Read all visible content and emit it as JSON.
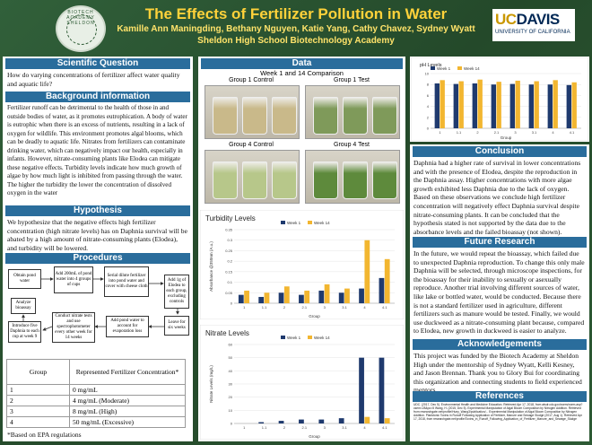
{
  "header": {
    "title": "The Effects of Fertilizer Pollution in Water",
    "authors": "Kamille Ann Maningding, Bethany Nguyen, Katie Yang, Cathy Chavez, Sydney Wyatt",
    "school": "Sheldon High School Biotechnology Academy",
    "logo_left_text": "BIOTECH ACADEMY SHELDON",
    "logo_right_main": "UCDAVIS",
    "logo_right_sub": "UNIVERSITY OF CALIFORNIA"
  },
  "scientific_question": {
    "heading": "Scientific Question",
    "body": "How do varying concentrations of fertilizer affect water quality and aquatic life?"
  },
  "background": {
    "heading": "Background information",
    "body": "Fertilizer runoff can be detrimental to the health of those in and outside bodies of water, as it promotes eutrophication. A body of water is eutrophic when there is an excess of nutrients, resulting in a lack of oxygen for wildlife. This environment promotes algal blooms, which can be deadly to aquatic life. Nitrates from fertilizers can contaminate drinking water, which can negatively impact our health, especially in infants. However, nitrate-consuming plants like Elodea can mitigate these negative effects. Turbidity levels indicate how much growth of algae by how much light is inhibited from passing through the water. The higher the turbidity the lower the concentration of dissolved oxygen in the water"
  },
  "hypothesis": {
    "heading": "Hypothesis",
    "body": "We hypothesize that the negative effects high fertilizer concentration (high nitrate levels) has on Daphnia survival will be abated by a high amount of nitrate-consuming plants (Elodea), and turbidity will be lowered."
  },
  "procedures": {
    "heading": "Procedures",
    "steps": [
      "Obtain pond water",
      "Add 200mL of pond water into 4 groups of cups",
      "Serial dilute fertilizer into pond water and cover with cheese cloth",
      "Add 1g of Elodea to each group, excluding controls",
      "Leave for six weeks",
      "Add pond water to account for evaporation loss",
      "Conduct nitrate tests and use spectrophotometer every other week for 14 weeks",
      "Introduce five Daphnia to each cup at week 9",
      "Analyze bioassay"
    ]
  },
  "concentration_table": {
    "headers": [
      "Group",
      "Represented Fertilizer Concentration*"
    ],
    "rows": [
      [
        "1",
        "0 mg/mL"
      ],
      [
        "2",
        "4 mg/mL (Moderate)"
      ],
      [
        "3",
        "8 mg/mL (High)"
      ],
      [
        "4",
        "50 mg/mL (Excessive)"
      ]
    ],
    "footnote": "*Based on EPA regulations"
  },
  "data": {
    "heading": "Data",
    "comparison_title": "Week 1 and 14 Comparison",
    "photo_labels": [
      "Group 1 Control",
      "Group 1 Test",
      "Group 4 Control",
      "Group 4 Test"
    ],
    "photo_colors": [
      "#c9b98a",
      "#7f9a5a",
      "#b7c78a",
      "#5e8a3c"
    ]
  },
  "conclusion": {
    "heading": "Conclusion",
    "body": "Daphnia had a higher rate of survival in lower concentrations and with the presence of Elodea, despite the reproduction in the Daphnia assay. Higher concentrations with more algae growth exhibited less Daphnia due to the lack of oxygen. Based on these observations we conclude high fertilizer concentration will negatively effect Daphnia survival despite nitrate-consuming plants. It can be concluded that the hypothesis stated is not supported by the data due to the absorbance levels and the failed bioassay (not shown)."
  },
  "future_research": {
    "heading": "Future Research",
    "body": "In the future, we would repeat the bioassay, which failed due to unexpected Daphnia reproduction. To change this only male Daphnia will be selected, through microscope inspections, for the bioassay for their inability to sexually or asexually reproduce. Another trial involving different sources of water, like lake or bottled water, would be conducted. Because there is not a standard fertilizer used in agriculture, different fertilizers such as manure would be tested. Finally, we would use duckweed as a nitrate-consuming plant because, compared to Elodea, new growth in duckweed is easier to analyze."
  },
  "acknowledgements": {
    "heading": "Acknowledgements",
    "body": "This project was funded by the Biotech Academy at Sheldon High under the mentorship of Sydney Wyatt, Kelli Kesney, and Jason Brennan. Thank you to Glory Bui for coordinating this organization and connecting students to field experienced mentors."
  },
  "references": {
    "heading": "References",
    "body": "UDC. (2017, Dec 5). Environmental Health and Medicine Education. Retrieved Apr 17, 2018, from atsdr.cdc.gov/csem/csem.asp?csem=28&po=5 Wang, H. (2015, Dec 5). Experimental Manipulation of Algal Bloom Composition by Nitrogen Addition. Retrieved from researchgate.net/profile/Huey_Wang3/publication/... Experimental Manipulation of Algal Bloom Composition by Nitrogen Addition. Planktonic Toxins in Runoff Following Application of Fertilizer, Manure and Sewage Sludge (2017, Aug 1). Retrieved Apr 17, 2018, from researchgate.net/profile/Toxins_in_Runoff_Following_Application_of_Fertilizer_Manure_and_Sewage_Sludge"
  },
  "chart_data": [
    {
      "type": "bar",
      "title": "pH Levels",
      "xlabel": "Group",
      "ylabel": "",
      "categories": [
        "1",
        "1.1",
        "2",
        "2.1",
        "3",
        "3.1",
        "4",
        "4.1"
      ],
      "ylim": [
        0,
        10
      ],
      "yticks": [
        "0",
        "2",
        "4",
        "6",
        "8",
        "10"
      ],
      "series": [
        {
          "name": "Week 1",
          "color": "#1f3a6e",
          "values": [
            8.2,
            8.1,
            8.2,
            8.0,
            8.1,
            8.0,
            8.0,
            7.9
          ]
        },
        {
          "name": "Week 14",
          "color": "#f2b630",
          "values": [
            8.8,
            8.6,
            8.9,
            8.5,
            8.7,
            8.6,
            8.8,
            8.4
          ]
        }
      ]
    },
    {
      "type": "bar",
      "title": "Turbidity Levels",
      "xlabel": "Group",
      "ylabel": "Absorbance @350nm (A.u.)",
      "categories": [
        "1",
        "1.1",
        "2",
        "2.1",
        "3",
        "3.1",
        "4",
        "4.1"
      ],
      "ylim": [
        0,
        0.35
      ],
      "yticks": [
        "0",
        "0.05",
        "0.1",
        "0.15",
        "0.2",
        "0.25",
        "0.3",
        "0.35"
      ],
      "series": [
        {
          "name": "Week 1",
          "color": "#1f3a6e",
          "values": [
            0.04,
            0.03,
            0.05,
            0.04,
            0.06,
            0.05,
            0.07,
            0.12
          ]
        },
        {
          "name": "Week 14",
          "color": "#f2b630",
          "values": [
            0.06,
            0.05,
            0.08,
            0.06,
            0.09,
            0.07,
            0.3,
            0.21
          ]
        }
      ]
    },
    {
      "type": "bar",
      "title": "Nitrate Levels",
      "xlabel": "Group",
      "ylabel": "Nitrate Levels (mg/L)",
      "categories": [
        "1",
        "1.1",
        "2",
        "2.1",
        "3",
        "3.1",
        "4",
        "4.1"
      ],
      "ylim": [
        0,
        60
      ],
      "yticks": [
        "0",
        "10",
        "20",
        "30",
        "40",
        "50",
        "60"
      ],
      "series": [
        {
          "name": "Week 1",
          "color": "#1f3a6e",
          "values": [
            0,
            1,
            2,
            3,
            3,
            4,
            50,
            50
          ]
        },
        {
          "name": "Week 14",
          "color": "#f2b630",
          "values": [
            0,
            0,
            0,
            0,
            0,
            0,
            5,
            4
          ]
        }
      ]
    }
  ]
}
